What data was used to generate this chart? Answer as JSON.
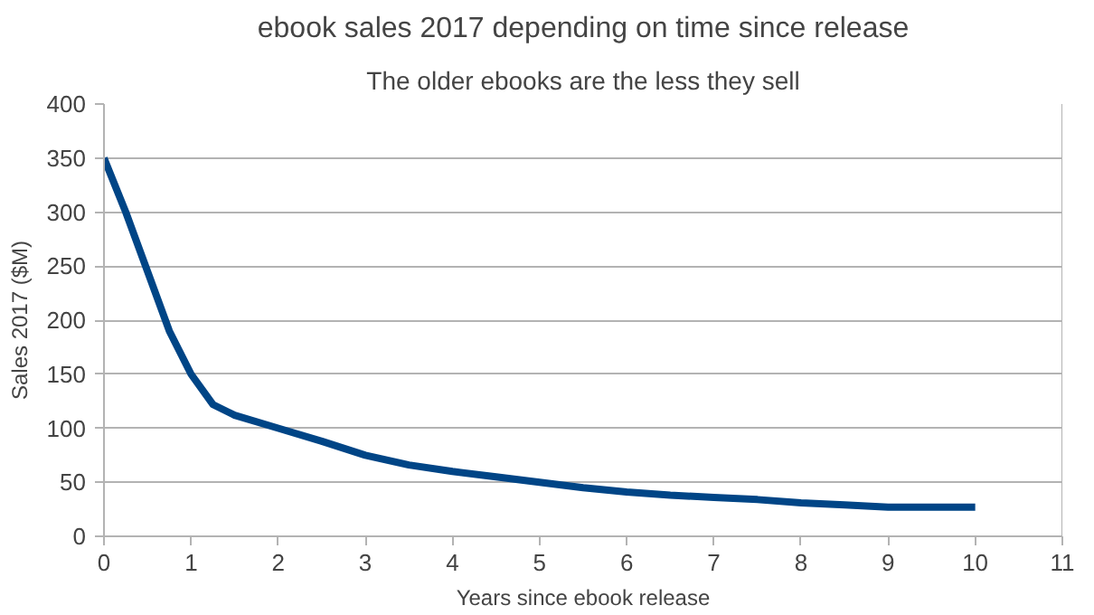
{
  "chart_data": {
    "type": "line",
    "title": "ebook sales 2017 depending on time since release",
    "subtitle": "The older ebooks are the less they sell",
    "xlabel": "Years since ebook release",
    "ylabel": "Sales 2017 ($M)",
    "x": [
      0,
      0.25,
      0.5,
      0.75,
      1,
      1.25,
      1.5,
      2,
      2.5,
      3,
      3.5,
      4,
      4.5,
      5,
      5.5,
      6,
      6.5,
      7,
      7.5,
      8,
      8.5,
      9,
      9.5,
      10
    ],
    "series": [
      {
        "color": "#004586",
        "values": [
          350,
          300,
          245,
          190,
          150,
          122,
          112,
          100,
          88,
          75,
          66,
          60,
          55,
          50,
          45,
          41,
          38,
          36,
          34,
          31,
          29,
          27,
          27,
          27
        ]
      }
    ],
    "xlim": [
      0,
      11
    ],
    "xticks": [
      0,
      1,
      2,
      3,
      4,
      5,
      6,
      7,
      8,
      9,
      10,
      11
    ],
    "ylim": [
      0,
      400
    ],
    "yticks": [
      0,
      50,
      100,
      150,
      200,
      250,
      300,
      350,
      400
    ],
    "grid": "y",
    "marker": "none",
    "line_style": "solid"
  }
}
